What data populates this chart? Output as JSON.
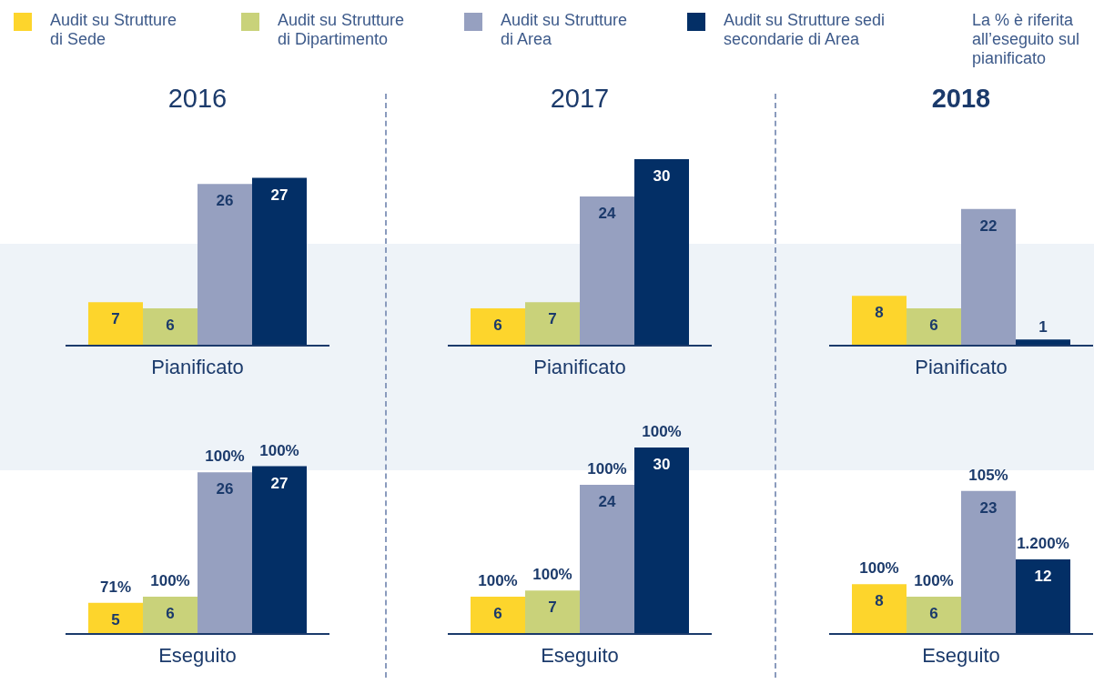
{
  "chart_data": [
    {
      "type": "bar",
      "title": "2016",
      "xlabel": "Pianificato",
      "categories": [
        null
      ],
      "data_labels": true,
      "legend": "top",
      "annotations": [
        "La % è riferita all’eseguito sul pianificato"
      ],
      "series": [
        {
          "name": "Audit su Strutture di Sede",
          "color": "#fdd52c",
          "values": [
            7
          ]
        },
        {
          "name": "Audit su Strutture di Dipartimento",
          "color": "#c9d27a",
          "values": [
            6
          ]
        },
        {
          "name": "Audit su Strutture di Area",
          "color": "#96a0c0",
          "values": [
            26
          ]
        },
        {
          "name": "Audit su Strutture sedi secondarie di Area",
          "color": "#032f66",
          "values": [
            27
          ]
        }
      ]
    },
    {
      "type": "bar",
      "title": "2017",
      "xlabel": "Pianificato",
      "categories": [
        null
      ],
      "data_labels": true,
      "series": [
        {
          "color": "#fdd52c",
          "values": [
            6
          ]
        },
        {
          "color": "#c9d27a",
          "values": [
            7
          ]
        },
        {
          "color": "#96a0c0",
          "values": [
            24
          ]
        },
        {
          "color": "#032f66",
          "values": [
            30
          ]
        }
      ]
    },
    {
      "type": "bar",
      "title": "2018",
      "xlabel": "Pianificato",
      "categories": [
        null
      ],
      "data_labels": true,
      "series": [
        {
          "color": "#fdd52c",
          "values": [
            8
          ]
        },
        {
          "color": "#c9d27a",
          "values": [
            6
          ]
        },
        {
          "color": "#96a0c0",
          "values": [
            22
          ]
        },
        {
          "color": "#032f66",
          "values": [
            1
          ]
        }
      ]
    },
    {
      "type": "bar",
      "xlabel": "Eseguito",
      "categories": [
        null
      ],
      "data_labels": true,
      "annotations": [
        {
          "text": "71%",
          "y": 5
        },
        {
          "text": "100%",
          "y": 6
        },
        {
          "text": "100%",
          "y": 26
        },
        {
          "text": "100%",
          "y": 27
        }
      ],
      "series": [
        {
          "color": "#fdd52c",
          "values": [
            5
          ]
        },
        {
          "color": "#c9d27a",
          "values": [
            6
          ]
        },
        {
          "color": "#96a0c0",
          "values": [
            26
          ]
        },
        {
          "color": "#032f66",
          "values": [
            27
          ]
        }
      ]
    },
    {
      "type": "bar",
      "xlabel": "Eseguito",
      "categories": [
        null
      ],
      "data_labels": true,
      "annotations": [
        {
          "text": "100%",
          "y": 6
        },
        {
          "text": "100%",
          "y": 7
        },
        {
          "text": "100%",
          "y": 24
        },
        {
          "text": "100%",
          "y": 30
        }
      ],
      "series": [
        {
          "color": "#fdd52c",
          "values": [
            6
          ]
        },
        {
          "color": "#c9d27a",
          "values": [
            7
          ]
        },
        {
          "color": "#96a0c0",
          "values": [
            24
          ]
        },
        {
          "color": "#032f66",
          "values": [
            30
          ]
        }
      ]
    },
    {
      "type": "bar",
      "xlabel": "Eseguito",
      "categories": [
        null
      ],
      "data_labels": true,
      "annotations": [
        {
          "text": "100%",
          "y": 8
        },
        {
          "text": "100%",
          "y": 6
        },
        {
          "text": "105%",
          "y": 23
        },
        {
          "text": "1.200%",
          "y": 12
        }
      ],
      "series": [
        {
          "color": "#fdd52c",
          "values": [
            8
          ]
        },
        {
          "color": "#c9d27a",
          "values": [
            6
          ]
        },
        {
          "color": "#96a0c0",
          "values": [
            23
          ]
        },
        {
          "color": "#032f66",
          "values": [
            12
          ]
        }
      ]
    }
  ]
}
